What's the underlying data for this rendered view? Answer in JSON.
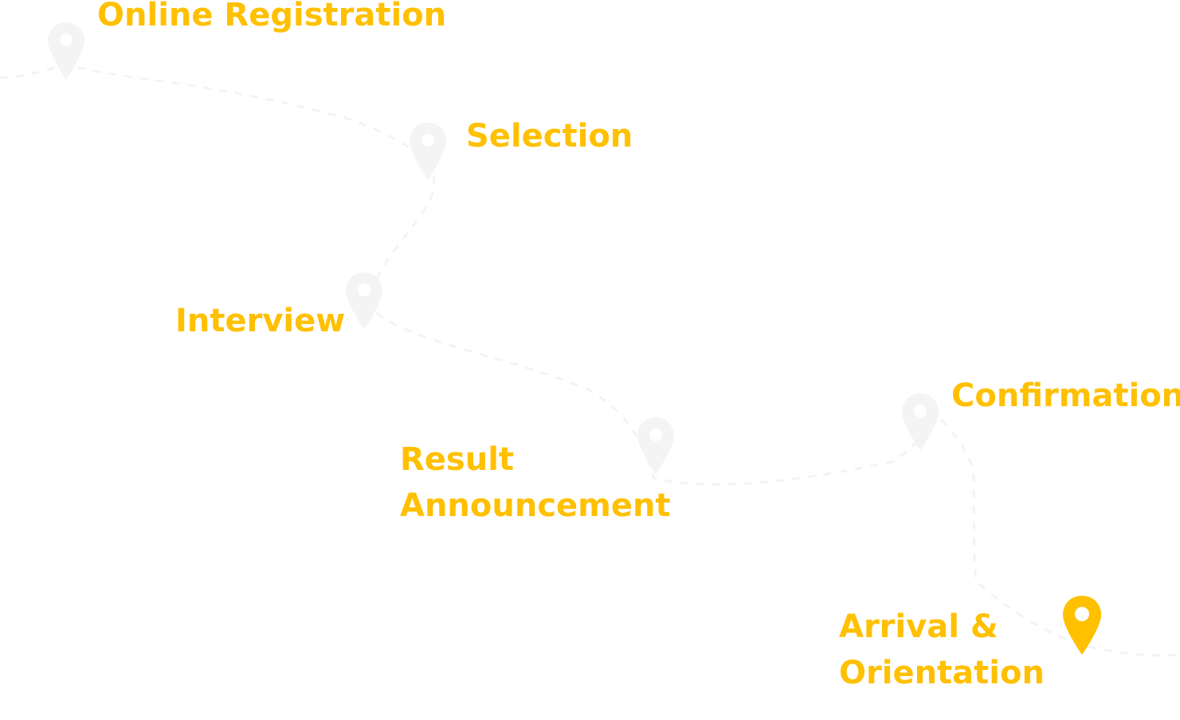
{
  "colors": {
    "accent": "#ffc000",
    "faint_pin": "#f4f4f4",
    "faint_path": "#f3f3f3"
  },
  "steps": [
    {
      "id": "online-registration",
      "title": "Online Registration",
      "title_lines": [
        "Online Registration"
      ],
      "pin_icon": "map-pin-icon",
      "pin_active": false
    },
    {
      "id": "selection",
      "title": "Selection",
      "title_lines": [
        "Selection"
      ],
      "pin_icon": "map-pin-icon",
      "pin_active": false
    },
    {
      "id": "interview",
      "title": "Interview",
      "title_lines": [
        "Interview"
      ],
      "pin_icon": "map-pin-icon",
      "pin_active": false
    },
    {
      "id": "result-announcement",
      "title": "Result Announcement",
      "title_lines": [
        "Result",
        "Announcement"
      ],
      "pin_icon": "map-pin-icon",
      "pin_active": false
    },
    {
      "id": "confirmation",
      "title": "Confirmation",
      "title_lines": [
        "Confirmation"
      ],
      "pin_icon": "map-pin-icon",
      "pin_active": false
    },
    {
      "id": "arrival-orientation",
      "title": "Arrival & Orientation",
      "title_lines": [
        "Arrival &",
        "Orientation"
      ],
      "pin_icon": "map-pin-icon",
      "pin_active": true
    }
  ]
}
